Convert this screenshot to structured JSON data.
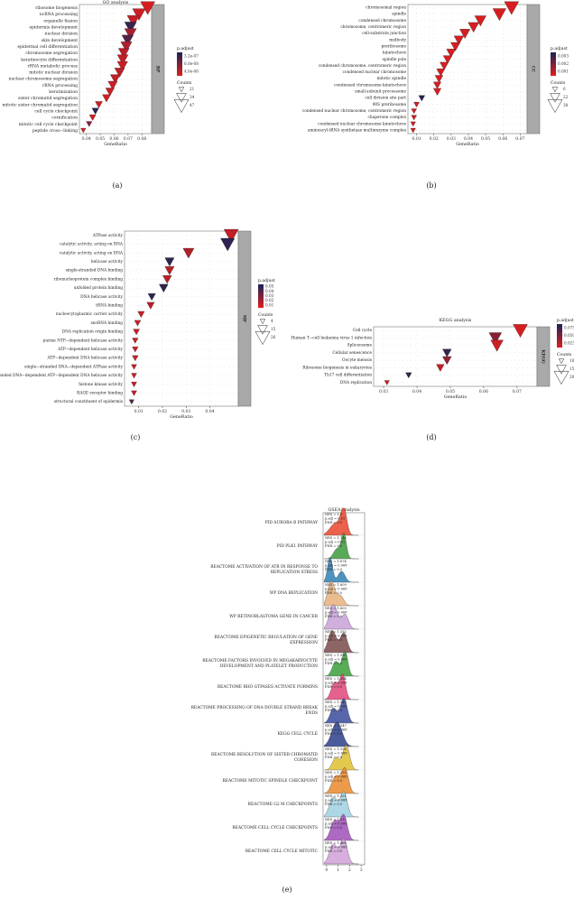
{
  "chart_data": [
    {
      "id": "a",
      "type": "scatter",
      "panel_label": "(a)",
      "title": "GO analysis",
      "facet_label": "BP",
      "xlabel": "GeneRatio",
      "xticks": [
        0.04,
        0.05,
        0.06,
        0.07,
        0.08
      ],
      "xlim": [
        0.035,
        0.087
      ],
      "legend": {
        "color_title": "p.adjust",
        "color_labels": [
          "3.2e-07",
          "6.0e-08",
          "4.0e-08"
        ],
        "size_title": "Counts",
        "size_labels": [
          "21",
          "34",
          "47"
        ],
        "size_values": [
          21,
          34,
          47
        ]
      },
      "points": [
        {
          "term": "ribosome biogenesis",
          "x": 0.0842,
          "count": 47,
          "p": 0.95
        },
        {
          "term": "ncRNA processing",
          "x": 0.0779,
          "count": 43,
          "p": 0.9
        },
        {
          "term": "organelle fission",
          "x": 0.0738,
          "count": 41,
          "p": 0.85
        },
        {
          "term": "epidermis development",
          "x": 0.0718,
          "count": 40,
          "p": 0.15
        },
        {
          "term": "nuclear division",
          "x": 0.0718,
          "count": 40,
          "p": 0.7
        },
        {
          "term": "skin development",
          "x": 0.0697,
          "count": 39,
          "p": 0.3
        },
        {
          "term": "epidermal cell differentiation",
          "x": 0.0688,
          "count": 38,
          "p": 0.75
        },
        {
          "term": "chromosome segregation",
          "x": 0.067,
          "count": 37,
          "p": 0.8
        },
        {
          "term": "keratinocyte differentiation",
          "x": 0.0662,
          "count": 37,
          "p": 0.85
        },
        {
          "term": "rRNA metabolic process",
          "x": 0.066,
          "count": 36,
          "p": 0.88
        },
        {
          "term": "mitotic nuclear division",
          "x": 0.064,
          "count": 35,
          "p": 0.82
        },
        {
          "term": "nuclear chromosome segregation",
          "x": 0.0608,
          "count": 34,
          "p": 0.85
        },
        {
          "term": "rRNA processing",
          "x": 0.059,
          "count": 33,
          "p": 0.9
        },
        {
          "term": "keratinization",
          "x": 0.057,
          "count": 31,
          "p": 0.88
        },
        {
          "term": "sister chromatid segregation",
          "x": 0.0545,
          "count": 30,
          "p": 0.92
        },
        {
          "term": "mitotic sister chromatid segregation",
          "x": 0.049,
          "count": 27,
          "p": 0.92
        },
        {
          "term": "cell cycle checkpoint",
          "x": 0.0465,
          "count": 26,
          "p": 0.05
        },
        {
          "term": "cornification",
          "x": 0.0445,
          "count": 25,
          "p": 0.92
        },
        {
          "term": "mitotic cell cycle checkpoint",
          "x": 0.042,
          "count": 23,
          "p": 0.55
        },
        {
          "term": "peptide cross−linking",
          "x": 0.0378,
          "count": 21,
          "p": 0.95
        }
      ]
    },
    {
      "id": "b",
      "type": "scatter",
      "panel_label": "(b)",
      "title": "",
      "facet_label": "CC",
      "xlabel": "GeneRatio",
      "xticks": [
        0.01,
        0.02,
        0.03,
        0.04,
        0.05,
        0.06,
        0.07
      ],
      "xlim": [
        0.005,
        0.074
      ],
      "legend": {
        "color_title": "p.adjust",
        "color_labels": [
          "0.003",
          "0.002",
          "0.001"
        ],
        "size_title": "Counts",
        "size_labels": [
          "6",
          "22",
          "38"
        ],
        "size_values": [
          6,
          22,
          38
        ]
      },
      "points": [
        {
          "term": "chromosomal region",
          "x": 0.065,
          "count": 38,
          "p": 0.95
        },
        {
          "term": "spindle",
          "x": 0.058,
          "count": 34,
          "p": 0.95
        },
        {
          "term": "condensed chromosome",
          "x": 0.047,
          "count": 28,
          "p": 0.95
        },
        {
          "term": "chromosome, centromeric region",
          "x": 0.043,
          "count": 26,
          "p": 0.95
        },
        {
          "term": "cell-substrate junction",
          "x": 0.038,
          "count": 24,
          "p": 0.93
        },
        {
          "term": "midbody",
          "x": 0.0345,
          "count": 22,
          "p": 0.93
        },
        {
          "term": "preribosome",
          "x": 0.0325,
          "count": 21,
          "p": 0.93
        },
        {
          "term": "kinetochore",
          "x": 0.03,
          "count": 20,
          "p": 0.95
        },
        {
          "term": "spindle pole",
          "x": 0.028,
          "count": 19,
          "p": 0.95
        },
        {
          "term": "condensed chromosome, centromeric region",
          "x": 0.026,
          "count": 18,
          "p": 0.95
        },
        {
          "term": "condensed nuclear chromosome",
          "x": 0.024,
          "count": 17,
          "p": 0.95
        },
        {
          "term": "mitotic spindle",
          "x": 0.023,
          "count": 16,
          "p": 0.95
        },
        {
          "term": "condensed chromosome kinetochore",
          "x": 0.022,
          "count": 15,
          "p": 0.95
        },
        {
          "term": "small-subunit processome",
          "x": 0.022,
          "count": 15,
          "p": 0.95
        },
        {
          "term": "cell division site part",
          "x": 0.013,
          "count": 10,
          "p": 0.05
        },
        {
          "term": "90S preribosome",
          "x": 0.01,
          "count": 8,
          "p": 0.9
        },
        {
          "term": "condensed nuclear chromosome, centromeric region",
          "x": 0.0085,
          "count": 7,
          "p": 0.9
        },
        {
          "term": "chaperone complex",
          "x": 0.0085,
          "count": 7,
          "p": 0.92
        },
        {
          "term": "condensed nuclear chromosome kinetochore",
          "x": 0.008,
          "count": 6,
          "p": 0.9
        },
        {
          "term": "aminoacyl-tRNA synthetase multienzyme complex",
          "x": 0.008,
          "count": 6,
          "p": 0.92
        }
      ]
    },
    {
      "id": "c",
      "type": "scatter",
      "panel_label": "(c)",
      "title": "",
      "facet_label": "MF",
      "xlabel": "GeneRatio",
      "xticks": [
        0.01,
        0.02,
        0.03,
        0.04
      ],
      "xlim": [
        0.004,
        0.052
      ],
      "legend": {
        "color_title": "p.adjust",
        "color_labels": [
          "0.05",
          "0.04",
          "0.03",
          "0.02",
          "0.01"
        ],
        "size_title": "Counts",
        "size_labels": [
          "4",
          "15",
          "26"
        ],
        "size_values": [
          4,
          15,
          26
        ]
      },
      "points": [
        {
          "term": "ATPase activity",
          "x": 0.049,
          "count": 26,
          "p": 0.85
        },
        {
          "term": "catalytic activity, acting on RNA",
          "x": 0.0475,
          "count": 25,
          "p": 0.1
        },
        {
          "term": "catalytic activity, acting on DNA",
          "x": 0.031,
          "count": 18,
          "p": 0.75
        },
        {
          "term": "helicase activity",
          "x": 0.023,
          "count": 14,
          "p": 0.1
        },
        {
          "term": "single-stranded DNA binding",
          "x": 0.023,
          "count": 14,
          "p": 0.8
        },
        {
          "term": "ribonucleoprotein complex binding",
          "x": 0.022,
          "count": 13,
          "p": 0.8
        },
        {
          "term": "unfolded protein binding",
          "x": 0.0205,
          "count": 13,
          "p": 0.1
        },
        {
          "term": "DNA helicase activity",
          "x": 0.0155,
          "count": 10,
          "p": 0.1
        },
        {
          "term": "tRNA binding",
          "x": 0.015,
          "count": 10,
          "p": 0.8
        },
        {
          "term": "nucleocytoplasmic carrier activity",
          "x": 0.011,
          "count": 8,
          "p": 0.88
        },
        {
          "term": "snoRNA binding",
          "x": 0.0095,
          "count": 7,
          "p": 0.88
        },
        {
          "term": "DNA replication origin binding",
          "x": 0.009,
          "count": 7,
          "p": 0.88
        },
        {
          "term": "purine NTP−dependent helicase activity",
          "x": 0.0085,
          "count": 6,
          "p": 0.88
        },
        {
          "term": "ATP−dependent helicase activity",
          "x": 0.0085,
          "count": 6,
          "p": 0.88
        },
        {
          "term": "ATP−dependent DNA helicase activity",
          "x": 0.0085,
          "count": 6,
          "p": 0.88
        },
        {
          "term": "single−stranded DNA−dependent ATPase activity",
          "x": 0.008,
          "count": 5,
          "p": 0.88
        },
        {
          "term": "single−stranded DNA−dependent ATP−dependent DNA helicase activity",
          "x": 0.008,
          "count": 5,
          "p": 0.88
        },
        {
          "term": "histone kinase activity",
          "x": 0.008,
          "count": 5,
          "p": 0.88
        },
        {
          "term": "RAGE receptor binding",
          "x": 0.008,
          "count": 5,
          "p": 0.88
        },
        {
          "term": "structural constituent of epidermis",
          "x": 0.007,
          "count": 4,
          "p": 0.3
        }
      ]
    },
    {
      "id": "d",
      "type": "scatter",
      "panel_label": "(d)",
      "title": "KEGG analysis",
      "facet_label": "KEGG",
      "xlabel": "GeneRatio",
      "xticks": [
        0.03,
        0.04,
        0.05,
        0.06,
        0.07
      ],
      "xlim": [
        0.027,
        0.076
      ],
      "legend": {
        "color_title": "p.adjust",
        "color_labels": [
          "0.075",
          "0.050",
          "0.025"
        ],
        "size_title": "Counts",
        "size_labels": [
          "10",
          "15",
          "20"
        ],
        "size_values": [
          10,
          15,
          20
        ]
      },
      "points": [
        {
          "term": "Cell cycle",
          "x": 0.071,
          "count": 20,
          "p": 0.95
        },
        {
          "term": "Human T−cell leukemia virus 1 infection",
          "x": 0.0635,
          "count": 18,
          "p": 0.55
        },
        {
          "term": "Spliceosome",
          "x": 0.064,
          "count": 18,
          "p": 0.9
        },
        {
          "term": "Cellular senescence",
          "x": 0.049,
          "count": 14,
          "p": 0.15
        },
        {
          "term": "Oocyte meiosis",
          "x": 0.049,
          "count": 14,
          "p": 0.6
        },
        {
          "term": "Ribosome biogenesis in eukaryotes",
          "x": 0.047,
          "count": 13,
          "p": 0.85
        },
        {
          "term": "Th17 cell differentiation",
          "x": 0.0375,
          "count": 11,
          "p": 0.1
        },
        {
          "term": "DNA replication",
          "x": 0.031,
          "count": 10,
          "p": 0.92
        }
      ]
    },
    {
      "id": "e",
      "type": "area",
      "panel_label": "(e)",
      "title": "GSEA analysis",
      "xticks": [
        0,
        1,
        2,
        3
      ],
      "xlim": [
        -0.3,
        3.3
      ],
      "rows": [
        {
          "name": "PID AURORA B PATHWAY",
          "nes": "NES = 1.8",
          "padj": "p.adj = 0.01",
          "fdr": "FDR = 0.0",
          "color": "#e8452c",
          "peaks": [
            [
              0.8,
              0.5,
              0.5
            ],
            [
              1.5,
              0.25,
              1.0
            ]
          ]
        },
        {
          "name": "PID PLK1 PATHWAY",
          "nes": "NES = 1.746",
          "padj": "p.adj = 0.01",
          "fdr": "FDR = 0.0",
          "color": "#3b9a3b",
          "peaks": [
            [
              0.9,
              0.3,
              0.4
            ],
            [
              1.5,
              0.22,
              1.0
            ]
          ]
        },
        {
          "name": "REACTOME ACTIVATION OF ATR IN RESPONSE TO REPLICATION STRESS",
          "nes": "NES = 1.674",
          "padj": "p.adj = 0.068",
          "fdr": "FDR = 0.0",
          "color": "#2f7fb5",
          "peaks": [
            [
              0.3,
              0.22,
              1.0
            ],
            [
              1.3,
              0.3,
              0.45
            ]
          ]
        },
        {
          "name": "WP DNA REPLICATION",
          "nes": "NES = 1.609",
          "padj": "p.adj = 0.068",
          "fdr": "FDR = 0.0",
          "color": "#e8b07a",
          "peaks": [
            [
              0.4,
              0.3,
              1.0
            ],
            [
              1.2,
              0.3,
              0.4
            ]
          ]
        },
        {
          "name": "WP RETINOBLASTOMA GENE IN CANCER",
          "nes": "NES = 1.603",
          "padj": "p.adj = 0.068",
          "fdr": "FDR = 0.0",
          "color": "#c8a0d8",
          "peaks": [
            [
              0.6,
              0.35,
              1.0
            ],
            [
              1.6,
              0.3,
              0.6
            ]
          ]
        },
        {
          "name": "REACTOME EPIGENETIC REGULATION OF GENE EXPRESSION",
          "nes": "NES = 1.592",
          "padj": "p.adj = 0.068",
          "fdr": "FDR = 0.0",
          "color": "#7a4a4a",
          "peaks": [
            [
              0.5,
              0.35,
              0.9
            ],
            [
              1.5,
              0.3,
              0.8
            ]
          ]
        },
        {
          "name": "REACTOME FACTORS INVOLVED IN MEGAKARYOCYTE DEVELOPMENT AND PLATELET PRODUCTION",
          "nes": "NES = 1.590",
          "padj": "p.adj = 0.068",
          "fdr": "FDR = 0.0",
          "color": "#3aa03a",
          "peaks": [
            [
              0.8,
              0.3,
              0.6
            ],
            [
              1.6,
              0.25,
              1.0
            ]
          ]
        },
        {
          "name": "REACTOME RHO GTPASES ACTIVATE FORMINS",
          "nes": "NES = 1.584",
          "padj": "p.adj = 0.068",
          "fdr": "FDR = 0.0",
          "color": "#e0457a",
          "peaks": [
            [
              0.7,
              0.3,
              0.7
            ],
            [
              1.4,
              0.25,
              1.0
            ]
          ]
        },
        {
          "name": "REACTOME PROCESSING OF DNA DOUBLE STRAND BREAK ENDS",
          "nes": "NES = 1.548",
          "padj": "p.adj = 0.068",
          "fdr": "FDR = 0.0",
          "color": "#3a4a9a",
          "peaks": [
            [
              0.6,
              0.3,
              0.6
            ],
            [
              1.5,
              0.3,
              1.0
            ]
          ]
        },
        {
          "name": "KEGG CELL CYCLE",
          "nes": "NES = 1.547",
          "padj": "p.adj = 0.068",
          "fdr": "FDR = 0.0",
          "color": "#2c3e8a",
          "peaks": [
            [
              0.9,
              0.45,
              1.0
            ]
          ]
        },
        {
          "name": "REACTOME RESOLUTION OF SISTER CHROMATID COHESION",
          "nes": "NES = 1.536",
          "padj": "p.adj = 0.068",
          "fdr": "FDR = 0.0",
          "color": "#e0c030",
          "peaks": [
            [
              0.8,
              0.3,
              0.5
            ],
            [
              1.7,
              0.3,
              1.0
            ]
          ]
        },
        {
          "name": "REACTOME MITOTIC SPINDLE CHECKPOINT",
          "nes": "NES = 1.535",
          "padj": "p.adj = 0.068",
          "fdr": "FDR = 0.0",
          "color": "#e88a2a",
          "peaks": [
            [
              0.8,
              0.35,
              0.7
            ],
            [
              1.6,
              0.3,
              1.0
            ]
          ]
        },
        {
          "name": "REACTOME G2 M CHECKPOINTS",
          "nes": "NES = 1.521",
          "padj": "p.adj = 0.068",
          "fdr": "FDR = 0.0",
          "color": "#9fd0e0",
          "peaks": [
            [
              0.6,
              0.35,
              0.8
            ],
            [
              1.5,
              0.3,
              1.0
            ]
          ]
        },
        {
          "name": "REACTOME CELL CYCLE CHECKPOINTS",
          "nes": "NES = 1.515",
          "padj": "p.adj = 0.068",
          "fdr": "FDR = 0.0",
          "color": "#a050b8",
          "peaks": [
            [
              0.7,
              0.35,
              0.8
            ],
            [
              1.5,
              0.3,
              1.0
            ]
          ]
        },
        {
          "name": "REACTOME CELL CYCLE MITOTIC",
          "nes": "NES = 1.468",
          "padj": "p.adj = 0.068",
          "fdr": "FDR = 0.0",
          "color": "#d0a0d8",
          "peaks": [
            [
              0.6,
              0.35,
              0.8
            ],
            [
              1.5,
              0.3,
              1.0
            ]
          ]
        }
      ]
    }
  ]
}
